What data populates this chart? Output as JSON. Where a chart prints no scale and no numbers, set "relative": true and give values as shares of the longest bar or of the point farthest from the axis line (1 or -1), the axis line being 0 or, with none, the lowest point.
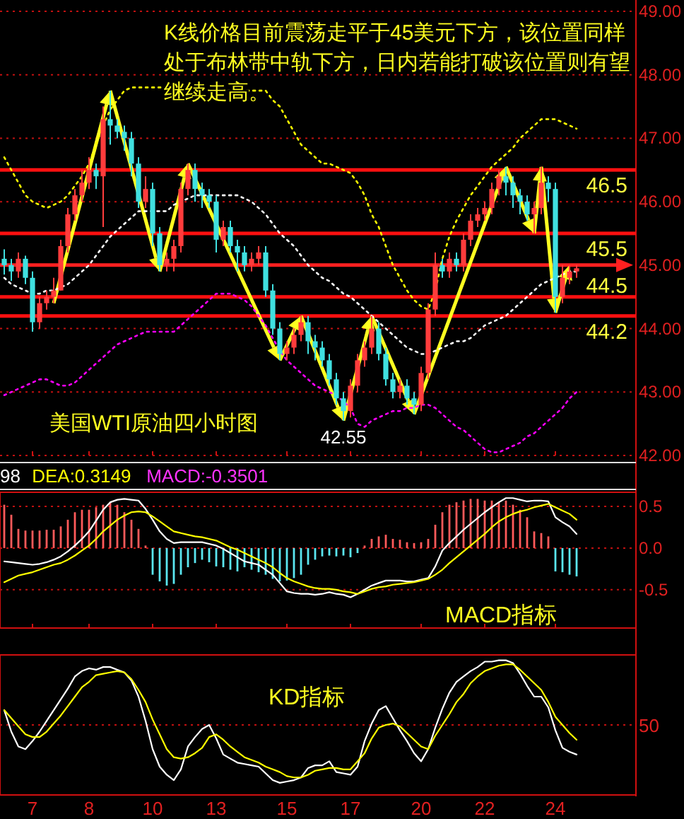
{
  "chart_data": [
    {
      "type": "candlestick",
      "title": "K线价格目前震荡走平于45美元下方，该位置同样处于布林带中轨下方，日内若能打破该位置则有望继续走高。",
      "annotations": [
        "美国WTI原油四小时图",
        {
          "text": "42.55",
          "y": 42.55
        }
      ],
      "categories": [
        null,
        null,
        null,
        null,
        "7",
        null,
        null,
        null,
        null,
        null,
        null,
        null,
        "8",
        null,
        null,
        null,
        null,
        null,
        null,
        null,
        null,
        "10",
        null,
        null,
        null,
        null,
        null,
        null,
        null,
        null,
        "13",
        null,
        null,
        null,
        null,
        null,
        null,
        null,
        null,
        null,
        "15",
        null,
        null,
        null,
        null,
        null,
        null,
        null,
        null,
        "17",
        null,
        null,
        null,
        null,
        null,
        null,
        null,
        null,
        null,
        "20",
        null,
        null,
        null,
        null,
        null,
        null,
        null,
        null,
        "22",
        null,
        null,
        null,
        null,
        null,
        null,
        null,
        null,
        null,
        "24",
        null,
        null,
        null
      ],
      "ohlc": [
        [
          45.1,
          45.25,
          44.85,
          45.0
        ],
        [
          45.0,
          45.1,
          44.75,
          44.9
        ],
        [
          44.9,
          45.2,
          44.8,
          45.1
        ],
        [
          45.1,
          45.15,
          44.7,
          44.8
        ],
        [
          44.8,
          44.9,
          43.95,
          44.1
        ],
        [
          44.1,
          44.5,
          44.0,
          44.4
        ],
        [
          44.4,
          44.6,
          44.3,
          44.5
        ],
        [
          44.5,
          44.8,
          44.4,
          44.6
        ],
        [
          44.6,
          45.4,
          44.6,
          45.3
        ],
        [
          45.3,
          45.9,
          45.2,
          45.8
        ],
        [
          45.8,
          46.2,
          45.7,
          46.1
        ],
        [
          46.1,
          46.5,
          46.0,
          46.3
        ],
        [
          46.3,
          46.7,
          46.2,
          46.5
        ],
        [
          46.5,
          46.6,
          46.2,
          46.4
        ],
        [
          46.4,
          47.5,
          45.6,
          47.3
        ],
        [
          47.3,
          47.75,
          46.9,
          47.2
        ],
        [
          47.2,
          47.3,
          47.0,
          47.1
        ],
        [
          47.1,
          47.2,
          46.8,
          47.0
        ],
        [
          47.0,
          47.1,
          46.4,
          46.6
        ],
        [
          46.6,
          46.7,
          45.9,
          46.0
        ],
        [
          46.0,
          46.4,
          45.9,
          46.2
        ],
        [
          46.2,
          46.3,
          45.3,
          45.5
        ],
        [
          45.5,
          45.6,
          44.9,
          45.0
        ],
        [
          45.0,
          45.2,
          44.9,
          45.1
        ],
        [
          45.1,
          45.4,
          44.9,
          45.3
        ],
        [
          45.3,
          46.3,
          45.2,
          46.2
        ],
        [
          46.2,
          46.6,
          46.1,
          46.5
        ],
        [
          46.5,
          46.6,
          46.0,
          46.2
        ],
        [
          46.2,
          46.3,
          45.9,
          46.1
        ],
        [
          46.1,
          46.2,
          45.9,
          46.0
        ],
        [
          46.0,
          46.1,
          45.2,
          45.4
        ],
        [
          45.4,
          45.7,
          45.3,
          45.6
        ],
        [
          45.6,
          45.7,
          45.2,
          45.3
        ],
        [
          45.3,
          45.4,
          44.9,
          45.2
        ],
        [
          45.2,
          45.3,
          44.9,
          45.0
        ],
        [
          45.0,
          45.2,
          44.9,
          45.1
        ],
        [
          45.1,
          45.3,
          45.0,
          45.2
        ],
        [
          45.2,
          45.3,
          44.5,
          44.6
        ],
        [
          44.6,
          44.7,
          43.9,
          44.0
        ],
        [
          44.0,
          44.1,
          43.5,
          43.6
        ],
        [
          43.6,
          43.8,
          43.5,
          43.7
        ],
        [
          43.7,
          44.0,
          43.6,
          43.9
        ],
        [
          43.9,
          44.2,
          43.8,
          44.1
        ],
        [
          44.1,
          44.2,
          43.6,
          43.8
        ],
        [
          43.8,
          43.9,
          43.5,
          43.7
        ],
        [
          43.7,
          43.8,
          43.4,
          43.5
        ],
        [
          43.5,
          43.6,
          43.1,
          43.2
        ],
        [
          43.2,
          43.3,
          42.8,
          42.9
        ],
        [
          42.9,
          43.0,
          42.55,
          42.7
        ],
        [
          42.7,
          43.2,
          42.6,
          43.1
        ],
        [
          43.1,
          43.6,
          43.0,
          43.5
        ],
        [
          43.5,
          43.8,
          43.4,
          43.7
        ],
        [
          43.7,
          44.2,
          43.6,
          44.0
        ],
        [
          44.0,
          44.1,
          43.5,
          43.6
        ],
        [
          43.6,
          43.7,
          43.1,
          43.2
        ],
        [
          43.2,
          43.3,
          42.9,
          43.0
        ],
        [
          43.0,
          43.2,
          42.9,
          43.1
        ],
        [
          43.1,
          43.2,
          42.8,
          42.9
        ],
        [
          42.9,
          43.0,
          42.65,
          42.8
        ],
        [
          42.8,
          43.4,
          42.7,
          43.3
        ],
        [
          43.3,
          44.4,
          43.2,
          44.3
        ],
        [
          44.3,
          45.2,
          44.2,
          45.0
        ],
        [
          45.0,
          45.1,
          44.8,
          44.9
        ],
        [
          44.9,
          45.2,
          44.8,
          45.1
        ],
        [
          45.1,
          45.2,
          44.9,
          45.0
        ],
        [
          45.0,
          45.5,
          44.9,
          45.4
        ],
        [
          45.4,
          45.8,
          45.3,
          45.7
        ],
        [
          45.7,
          45.9,
          45.6,
          45.8
        ],
        [
          45.8,
          46.0,
          45.7,
          45.9
        ],
        [
          45.9,
          46.3,
          45.8,
          46.2
        ],
        [
          46.2,
          46.5,
          46.1,
          46.4
        ],
        [
          46.4,
          46.55,
          46.1,
          46.3
        ],
        [
          46.3,
          46.4,
          45.9,
          46.1
        ],
        [
          46.1,
          46.2,
          45.8,
          46.0
        ],
        [
          46.0,
          46.1,
          45.7,
          45.8
        ],
        [
          45.8,
          46.0,
          45.5,
          45.9
        ],
        [
          45.9,
          46.55,
          45.8,
          46.3
        ],
        [
          46.3,
          46.4,
          46.0,
          46.2
        ],
        [
          46.2,
          46.3,
          44.25,
          44.5
        ],
        [
          44.5,
          45.0,
          44.4,
          44.8
        ],
        [
          44.8,
          45.0,
          44.7,
          44.9
        ],
        [
          44.9,
          45.0,
          44.8,
          44.95
        ]
      ],
      "colors": [
        "#40e0e0",
        "#40e0e0",
        "#ff3c3c",
        "#40e0e0",
        "#40e0e0",
        "#ff3c3c",
        "#ff3c3c",
        "#ff3c3c",
        "#ff3c3c",
        "#ff3c3c",
        "#ff3c3c",
        "#ff3c3c",
        "#ff3c3c",
        "#40e0e0",
        "#ff3c3c",
        "#40e0e0",
        "#40e0e0",
        "#40e0e0",
        "#40e0e0",
        "#40e0e0",
        "#ff3c3c",
        "#40e0e0",
        "#40e0e0",
        "#ff3c3c",
        "#ff3c3c",
        "#ff3c3c",
        "#ff3c3c",
        "#40e0e0",
        "#40e0e0",
        "#40e0e0",
        "#40e0e0",
        "#ff3c3c",
        "#40e0e0",
        "#40e0e0",
        "#40e0e0",
        "#ff3c3c",
        "#ff3c3c",
        "#40e0e0",
        "#40e0e0",
        "#40e0e0",
        "#ff3c3c",
        "#ff3c3c",
        "#ff3c3c",
        "#40e0e0",
        "#40e0e0",
        "#40e0e0",
        "#40e0e0",
        "#40e0e0",
        "#40e0e0",
        "#ff3c3c",
        "#ff3c3c",
        "#ff3c3c",
        "#ff3c3c",
        "#40e0e0",
        "#40e0e0",
        "#40e0e0",
        "#ff3c3c",
        "#40e0e0",
        "#40e0e0",
        "#ff3c3c",
        "#ff3c3c",
        "#ff3c3c",
        "#40e0e0",
        "#ff3c3c",
        "#40e0e0",
        "#ff3c3c",
        "#ff3c3c",
        "#ff3c3c",
        "#ff3c3c",
        "#ff3c3c",
        "#ff3c3c",
        "#40e0e0",
        "#40e0e0",
        "#40e0e0",
        "#40e0e0",
        "#ff3c3c",
        "#ff3c3c",
        "#40e0e0",
        "#40e0e0",
        "#ff3c3c",
        "#ff3c3c",
        "#ff3c3c"
      ],
      "series": [
        {
          "type": "line",
          "color": "#ffff00",
          "line_style": "dotted",
          "values": [
            46.7,
            46.5,
            46.3,
            46.1,
            46.0,
            45.95,
            45.9,
            45.95,
            46.0,
            46.1,
            46.25,
            46.4,
            46.6,
            46.9,
            47.2,
            47.45,
            47.6,
            47.75,
            47.8,
            47.8,
            47.8,
            47.8,
            47.8,
            47.8,
            47.8,
            47.8,
            47.8,
            47.8,
            47.8,
            47.8,
            47.8,
            47.75,
            47.75,
            47.75,
            47.75,
            47.75,
            47.75,
            47.75,
            47.6,
            47.5,
            47.3,
            47.1,
            46.9,
            46.8,
            46.7,
            46.6,
            46.6,
            46.55,
            46.5,
            46.45,
            46.3,
            46.1,
            45.8,
            45.6,
            45.3,
            45.0,
            44.8,
            44.6,
            44.45,
            44.35,
            44.3,
            44.6,
            45.1,
            45.45,
            45.7,
            45.9,
            46.1,
            46.25,
            46.4,
            46.55,
            46.65,
            46.75,
            46.85,
            47.0,
            47.1,
            47.2,
            47.3,
            47.3,
            47.3,
            47.25,
            47.2,
            47.15
          ]
        },
        {
          "type": "line",
          "color": "#ffffff",
          "line_style": "dotted",
          "values": [
            44.8,
            44.7,
            44.65,
            44.6,
            44.55,
            44.55,
            44.6,
            44.6,
            44.65,
            44.7,
            44.8,
            44.9,
            45.0,
            45.15,
            45.3,
            45.45,
            45.55,
            45.65,
            45.75,
            45.85,
            45.85,
            45.85,
            45.85,
            45.85,
            45.95,
            46.0,
            46.05,
            46.1,
            46.1,
            46.1,
            46.1,
            46.1,
            46.1,
            46.1,
            46.05,
            46.0,
            45.9,
            45.8,
            45.65,
            45.5,
            45.4,
            45.3,
            45.15,
            45.0,
            44.9,
            44.8,
            44.75,
            44.65,
            44.55,
            44.5,
            44.4,
            44.3,
            44.2,
            44.1,
            44.0,
            43.9,
            43.8,
            43.7,
            43.65,
            43.6,
            43.6,
            43.65,
            43.7,
            43.75,
            43.8,
            43.8,
            43.85,
            43.95,
            44.05,
            44.1,
            44.15,
            44.2,
            44.3,
            44.4,
            44.5,
            44.6,
            44.7,
            44.75,
            44.8,
            44.85,
            44.9,
            44.9
          ]
        },
        {
          "type": "line",
          "color": "#ff00ff",
          "line_style": "dotted",
          "values": [
            42.95,
            43.0,
            43.05,
            43.1,
            43.15,
            43.2,
            43.2,
            43.15,
            43.1,
            43.1,
            43.15,
            43.25,
            43.35,
            43.45,
            43.55,
            43.65,
            43.75,
            43.8,
            43.85,
            43.9,
            43.95,
            43.95,
            43.95,
            43.95,
            43.95,
            44.05,
            44.15,
            44.25,
            44.35,
            44.45,
            44.55,
            44.55,
            44.55,
            44.5,
            44.45,
            44.35,
            44.2,
            44.05,
            43.85,
            43.65,
            43.5,
            43.4,
            43.3,
            43.2,
            43.1,
            43.05,
            43.0,
            42.95,
            42.85,
            42.75,
            42.5,
            42.45,
            42.55,
            42.6,
            42.65,
            42.7,
            42.7,
            42.75,
            42.75,
            42.8,
            42.8,
            42.75,
            42.65,
            42.55,
            42.45,
            42.4,
            42.3,
            42.2,
            42.1,
            42.05,
            42.05,
            42.1,
            42.15,
            42.2,
            42.3,
            42.35,
            42.45,
            42.55,
            42.65,
            42.75,
            42.9,
            43.0
          ]
        }
      ],
      "ylim": [
        42,
        49
      ],
      "yticks": [
        {
          "value": 42,
          "label": "42.00"
        },
        {
          "value": 43,
          "label": "43.00"
        },
        {
          "value": 44,
          "label": "44.00"
        },
        {
          "value": 45,
          "label": "45.00"
        },
        {
          "value": 46,
          "label": "46.00"
        },
        {
          "value": 47,
          "label": "47.00"
        },
        {
          "value": 48,
          "label": "48.00"
        },
        {
          "value": 49,
          "label": "49.00"
        }
      ],
      "grid": "y",
      "tick_labels": "y",
      "ref_lines": [
        {
          "axis": "y",
          "value": 46.5,
          "label": "46.5",
          "color": "#ff1010"
        },
        {
          "axis": "y",
          "value": 45.5,
          "label": "45.5",
          "color": "#ff1010"
        },
        {
          "axis": "y",
          "value": 45,
          "color": "#ff2020"
        },
        {
          "axis": "y",
          "value": 44.5,
          "label": "44.5",
          "color": "#ff1010"
        },
        {
          "axis": "y",
          "value": 44.2,
          "label": "44.2",
          "color": "#ff1010"
        }
      ]
    },
    {
      "type": "bar",
      "annotations": [
        "98",
        "DEA:0.3149",
        "MACD:-0.3501",
        "MACD指标"
      ],
      "categories": [
        null,
        null,
        null,
        null,
        "7",
        null,
        null,
        null,
        null,
        null,
        null,
        null,
        "8",
        null,
        null,
        null,
        null,
        null,
        null,
        null,
        null,
        "10",
        null,
        null,
        null,
        null,
        null,
        null,
        null,
        null,
        "13",
        null,
        null,
        null,
        null,
        null,
        null,
        null,
        null,
        null,
        "15",
        null,
        null,
        null,
        null,
        null,
        null,
        null,
        null,
        "17",
        null,
        null,
        null,
        null,
        null,
        null,
        null,
        null,
        null,
        "20",
        null,
        null,
        null,
        null,
        null,
        null,
        null,
        null,
        "22",
        null,
        null,
        null,
        null,
        null,
        null,
        null,
        null,
        null,
        "24",
        null,
        null,
        null
      ],
      "series": [
        {
          "type": "bar",
          "values": [
            0.52,
            0.4,
            0.23,
            0.21,
            0.21,
            0.21,
            0.22,
            0.22,
            0.26,
            0.34,
            0.43,
            0.46,
            0.46,
            0.49,
            0.52,
            0.55,
            0.52,
            0.43,
            0.34,
            0.23,
            0.03,
            -0.32,
            -0.4,
            -0.45,
            -0.43,
            -0.32,
            -0.23,
            -0.18,
            -0.14,
            -0.17,
            -0.22,
            -0.23,
            -0.26,
            -0.28,
            -0.23,
            -0.26,
            -0.29,
            -0.32,
            -0.37,
            -0.4,
            -0.39,
            -0.36,
            -0.32,
            -0.2,
            -0.14,
            -0.1,
            -0.09,
            -0.1,
            -0.09,
            -0.11,
            -0.06,
            0.03,
            0.11,
            0.14,
            0.16,
            0.11,
            0.1,
            0.07,
            0.06,
            0.07,
            0.11,
            0.28,
            0.43,
            0.52,
            0.55,
            0.57,
            0.59,
            0.59,
            0.57,
            0.57,
            0.55,
            0.57,
            0.52,
            0.46,
            0.37,
            0.2,
            0.18,
            0.14,
            -0.28,
            -0.29,
            -0.32,
            -0.34
          ],
          "colors": [
            "#ff5a5a",
            "#ff5a5a",
            "#ff5a5a",
            "#ff5a5a",
            "#ff5a5a",
            "#ff5a5a",
            "#ff5a5a",
            "#ff5a5a",
            "#ff5a5a",
            "#ff5a5a",
            "#ff5a5a",
            "#ff5a5a",
            "#ff5a5a",
            "#ff5a5a",
            "#ff5a5a",
            "#ff5a5a",
            "#ff5a5a",
            "#ff5a5a",
            "#ff5a5a",
            "#ff5a5a",
            "#ff5a5a",
            "#5ae6f0",
            "#5ae6f0",
            "#5ae6f0",
            "#5ae6f0",
            "#5ae6f0",
            "#5ae6f0",
            "#5ae6f0",
            "#5ae6f0",
            "#5ae6f0",
            "#5ae6f0",
            "#5ae6f0",
            "#5ae6f0",
            "#5ae6f0",
            "#5ae6f0",
            "#5ae6f0",
            "#5ae6f0",
            "#5ae6f0",
            "#5ae6f0",
            "#5ae6f0",
            "#5ae6f0",
            "#5ae6f0",
            "#5ae6f0",
            "#5ae6f0",
            "#5ae6f0",
            "#5ae6f0",
            "#5ae6f0",
            "#5ae6f0",
            "#5ae6f0",
            "#5ae6f0",
            "#5ae6f0",
            "#ff5a5a",
            "#ff5a5a",
            "#ff5a5a",
            "#ff5a5a",
            "#ff5a5a",
            "#ff5a5a",
            "#ff5a5a",
            "#ff5a5a",
            "#ff5a5a",
            "#ff5a5a",
            "#ff5a5a",
            "#ff5a5a",
            "#ff5a5a",
            "#ff5a5a",
            "#ff5a5a",
            "#ff5a5a",
            "#ff5a5a",
            "#ff5a5a",
            "#ff5a5a",
            "#ff5a5a",
            "#ff5a5a",
            "#ff5a5a",
            "#ff5a5a",
            "#ff5a5a",
            "#ff5a5a",
            "#ff5a5a",
            "#ff5a5a",
            "#5ae6f0",
            "#5ae6f0",
            "#5ae6f0",
            "#5ae6f0"
          ]
        },
        {
          "type": "line",
          "color": "#ffffff",
          "values": [
            -0.16,
            -0.17,
            -0.18,
            -0.19,
            -0.2,
            -0.19,
            -0.17,
            -0.14,
            -0.1,
            -0.04,
            0.03,
            0.11,
            0.2,
            0.33,
            0.46,
            0.55,
            0.58,
            0.59,
            0.58,
            0.57,
            0.47,
            0.34,
            0.2,
            0.11,
            0.06,
            0.07,
            0.07,
            0.07,
            0.07,
            0.05,
            0.03,
            -0.01,
            -0.06,
            -0.11,
            -0.16,
            -0.18,
            -0.2,
            -0.26,
            -0.32,
            -0.42,
            -0.52,
            -0.54,
            -0.55,
            -0.55,
            -0.56,
            -0.55,
            -0.53,
            -0.55,
            -0.56,
            -0.59,
            -0.55,
            -0.5,
            -0.45,
            -0.42,
            -0.39,
            -0.39,
            -0.39,
            -0.4,
            -0.4,
            -0.38,
            -0.36,
            -0.22,
            -0.03,
            0.06,
            0.14,
            0.22,
            0.29,
            0.36,
            0.43,
            0.49,
            0.55,
            0.6,
            0.6,
            0.58,
            0.56,
            0.57,
            0.57,
            0.56,
            0.37,
            0.31,
            0.26,
            0.17
          ]
        },
        {
          "type": "line",
          "color": "#ffff00",
          "values": [
            -0.41,
            -0.37,
            -0.33,
            -0.31,
            -0.29,
            -0.26,
            -0.23,
            -0.2,
            -0.18,
            -0.14,
            -0.09,
            -0.03,
            0.03,
            0.11,
            0.2,
            0.27,
            0.34,
            0.39,
            0.43,
            0.44,
            0.43,
            0.38,
            0.32,
            0.26,
            0.2,
            0.18,
            0.16,
            0.14,
            0.13,
            0.11,
            0.09,
            0.05,
            0.01,
            -0.02,
            -0.06,
            -0.1,
            -0.14,
            -0.18,
            -0.23,
            -0.3,
            -0.36,
            -0.4,
            -0.43,
            -0.46,
            -0.48,
            -0.49,
            -0.49,
            -0.5,
            -0.52,
            -0.53,
            -0.55,
            -0.52,
            -0.49,
            -0.47,
            -0.46,
            -0.44,
            -0.43,
            -0.42,
            -0.41,
            -0.39,
            -0.37,
            -0.32,
            -0.26,
            -0.18,
            -0.11,
            -0.04,
            0.03,
            0.1,
            0.17,
            0.25,
            0.32,
            0.37,
            0.41,
            0.44,
            0.46,
            0.49,
            0.51,
            0.53,
            0.49,
            0.45,
            0.41,
            0.34
          ]
        }
      ],
      "ylim": [
        -0.96,
        0.67
      ],
      "yticks": [
        {
          "value": -0.5,
          "label": "-0.5"
        },
        {
          "value": 0,
          "label": "0.0"
        },
        {
          "value": 0.5,
          "label": "0.5"
        }
      ],
      "grid": "y",
      "tick_labels": "y"
    },
    {
      "type": "line",
      "annotations": [
        "KD指标",
        "50"
      ],
      "categories": [
        null,
        null,
        null,
        null,
        "7",
        null,
        null,
        null,
        null,
        null,
        null,
        null,
        "8",
        null,
        null,
        null,
        null,
        null,
        null,
        null,
        null,
        "10",
        null,
        null,
        null,
        null,
        null,
        null,
        null,
        null,
        "13",
        null,
        null,
        null,
        null,
        null,
        null,
        null,
        null,
        null,
        "15",
        null,
        null,
        null,
        null,
        null,
        null,
        null,
        null,
        "17",
        null,
        null,
        null,
        null,
        null,
        null,
        null,
        null,
        null,
        "20",
        null,
        null,
        null,
        null,
        null,
        null,
        null,
        null,
        "22",
        null,
        null,
        null,
        null,
        null,
        null,
        null,
        null,
        null,
        "24",
        null,
        null,
        null
      ],
      "series": [
        {
          "color": "#ffffff",
          "values": [
            0.63,
            0.47,
            0.36,
            0.34,
            0.4,
            0.47,
            0.55,
            0.63,
            0.71,
            0.79,
            0.88,
            0.92,
            0.94,
            0.93,
            0.95,
            0.95,
            0.93,
            0.91,
            0.85,
            0.73,
            0.55,
            0.34,
            0.21,
            0.15,
            0.11,
            0.19,
            0.36,
            0.43,
            0.49,
            0.52,
            0.42,
            0.3,
            0.27,
            0.24,
            0.23,
            0.22,
            0.21,
            0.16,
            0.11,
            0.09,
            0.1,
            0.11,
            0.13,
            0.2,
            0.22,
            0.22,
            0.25,
            0.17,
            0.16,
            0.15,
            0.21,
            0.4,
            0.53,
            0.63,
            0.66,
            0.57,
            0.48,
            0.4,
            0.31,
            0.25,
            0.34,
            0.5,
            0.64,
            0.76,
            0.84,
            0.88,
            0.92,
            0.95,
            0.99,
            0.99,
            1,
            1,
            0.98,
            0.9,
            0.81,
            0.73,
            0.73,
            0.65,
            0.48,
            0.35,
            0.32,
            0.3
          ]
        },
        {
          "color": "#ffff00",
          "values": [
            0.63,
            0.57,
            0.51,
            0.45,
            0.43,
            0.43,
            0.47,
            0.53,
            0.59,
            0.66,
            0.73,
            0.8,
            0.84,
            0.89,
            0.9,
            0.91,
            0.92,
            0.91,
            0.86,
            0.78,
            0.69,
            0.56,
            0.45,
            0.34,
            0.28,
            0.27,
            0.28,
            0.31,
            0.35,
            0.43,
            0.45,
            0.41,
            0.36,
            0.32,
            0.28,
            0.26,
            0.24,
            0.21,
            0.19,
            0.17,
            0.14,
            0.13,
            0.13,
            0.15,
            0.18,
            0.19,
            0.2,
            0.2,
            0.19,
            0.19,
            0.25,
            0.31,
            0.42,
            0.5,
            0.52,
            0.53,
            0.51,
            0.46,
            0.41,
            0.36,
            0.34,
            0.44,
            0.52,
            0.6,
            0.69,
            0.75,
            0.83,
            0.88,
            0.92,
            0.94,
            0.96,
            0.97,
            0.97,
            0.93,
            0.88,
            0.83,
            0.78,
            0.69,
            0.58,
            0.52,
            0.46,
            0.41
          ]
        }
      ],
      "relative": true,
      "ref_lines": [
        {
          "axis": "y",
          "value": 0.52,
          "color": "#c01010",
          "line_style": "dotted"
        }
      ]
    }
  ]
}
